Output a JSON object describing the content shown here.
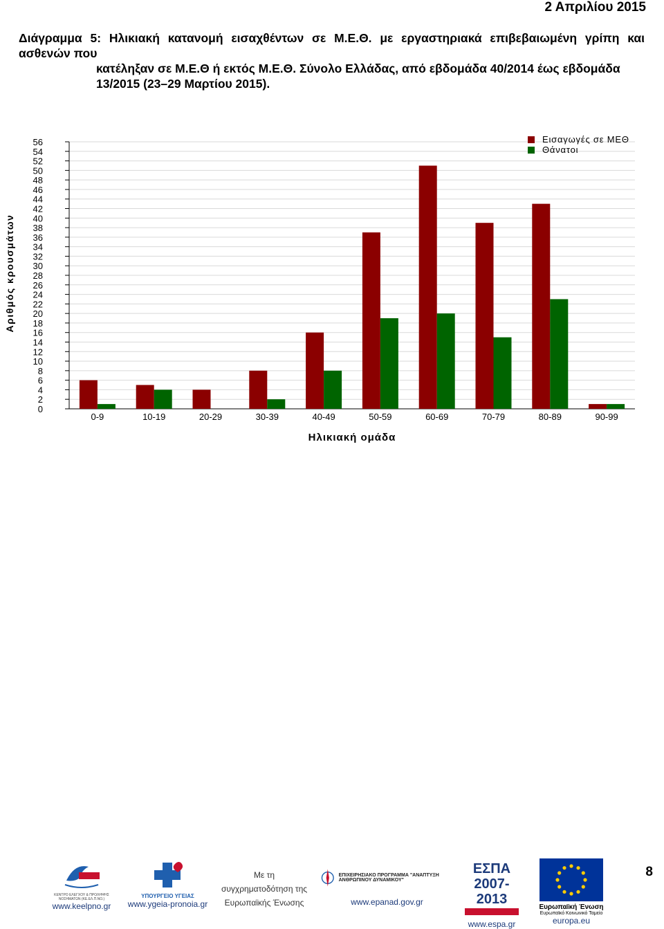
{
  "header": {
    "date": "2 Απριλίου 2015"
  },
  "caption": {
    "line1": "Διάγραμμα 5: Ηλικιακή κατανομή εισαχθέντων σε Μ.Ε.Θ. με εργαστηριακά επιβεβαιωμένη γρίπη και ασθενών που",
    "line2": "κατέληξαν σε Μ.Ε.Θ ή εκτός Μ.Ε.Θ. Σύνολο Ελλάδας, από εβδομάδα 40/2014 έως εβδομάδα",
    "line3": "13/2015 (23–29 Μαρτίου 2015)."
  },
  "chart_data": {
    "type": "bar",
    "categories": [
      "0-9",
      "10-19",
      "20-29",
      "30-39",
      "40-49",
      "50-59",
      "60-69",
      "70-79",
      "80-89",
      "90-99"
    ],
    "series": [
      {
        "name": "Εισαγωγές σε ΜΕΘ",
        "color": "#8b0000",
        "values": [
          6,
          5,
          4,
          8,
          16,
          37,
          51,
          39,
          43,
          1
        ]
      },
      {
        "name": "Θάνατοι",
        "color": "#006400",
        "values": [
          1,
          4,
          0,
          2,
          8,
          19,
          20,
          15,
          23,
          1
        ]
      }
    ],
    "xlabel": "Ηλικιακή ομάδα",
    "ylabel": "Αριθμός κρουσμάτων",
    "ylim": [
      0,
      56
    ],
    "ytick_step": 2,
    "grid": true,
    "legend_position": "top-right"
  },
  "footer": {
    "page_number": "8",
    "logos": [
      {
        "name": "keelpno",
        "text": "ΚΕΝΤΡΟ ΕΛΕΓΧΟΥ & ΠΡΟΛΗΨΗΣ ΝΟΣΗΜΑΤΩΝ (ΚΕ.ΕΛ.Π.ΝΟ.)",
        "url": "www.keelpno.gr"
      },
      {
        "name": "ypourgeio-ygeias",
        "text": "ΥΠΟΥΡΓΕΙΟ ΥΓΕΙΑΣ",
        "url": "www.ygeia-pronoia.gr"
      },
      {
        "name": "epanad",
        "text": "ΕΠΙΧΕΙΡΗΣΙΑΚΟ ΠΡΟΓΡΑΜΜΑ \"ΑΝΑΠΤΥΞΗ ΑΝΘΡΩΠΙΝΟΥ ΔΥΝΑΜΙΚΟΥ\"",
        "url": "www.epanad.gov.gr"
      },
      {
        "name": "espa",
        "text": "ΕΣΠΑ 2007-2013",
        "url": "www.espa.gr"
      },
      {
        "name": "eu",
        "text": "Ευρωπαϊκή Ένωση",
        "subtext": "Ευρωπαϊκό Κοινωνικό Ταμείο",
        "url": "europa.eu"
      }
    ],
    "cofunding": [
      "Με τη",
      "συγχρηματοδότηση της",
      "Ευρωπαϊκής Ένωσης"
    ],
    "colors": {
      "eu_blue": "#003399",
      "eu_star": "#ffcc00",
      "espa_red": "#c8102e",
      "ygeia_blue": "#1f5fae"
    }
  }
}
